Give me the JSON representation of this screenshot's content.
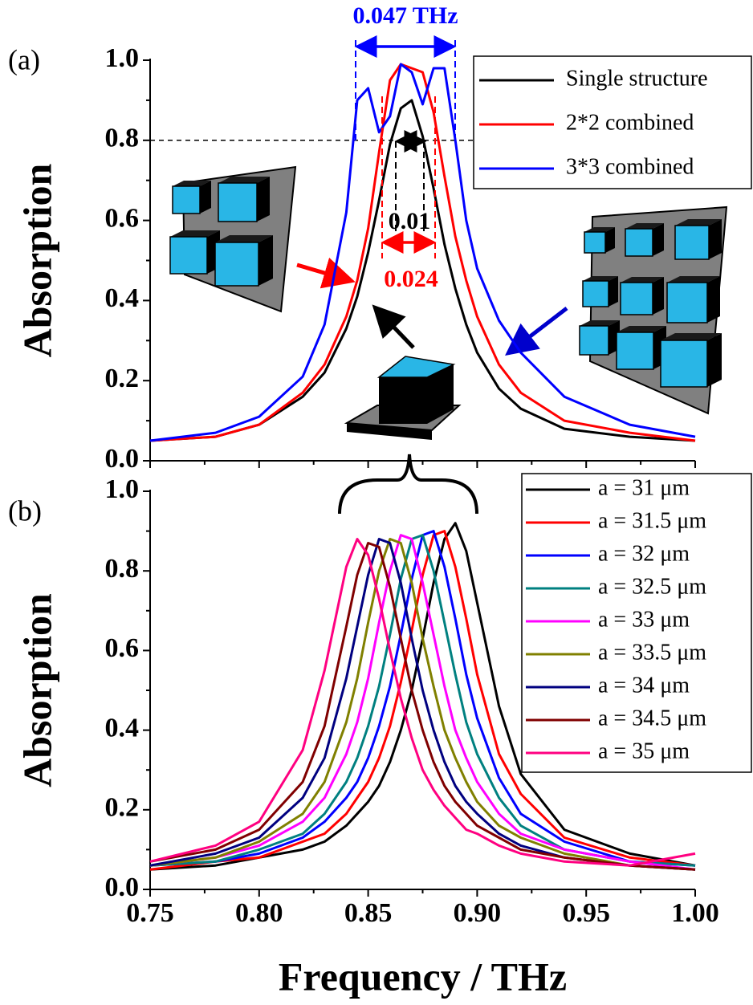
{
  "chart_data": [
    {
      "type": "line",
      "panel_label": "(a)",
      "ylabel": "Absorption",
      "xlim": [
        0.75,
        1.0
      ],
      "ylim": [
        0,
        1
      ],
      "xticks": [
        0.75,
        0.8,
        0.85,
        0.9,
        0.95,
        1.0
      ],
      "yticks": [
        {
          "value": 0,
          "label": "0.0"
        },
        0.2,
        0.4,
        0.6,
        0.8,
        {
          "value": 1,
          "label": "1.0"
        }
      ],
      "hline": 0.8,
      "legend": "upper right",
      "x": [
        0.75,
        0.78,
        0.8,
        0.82,
        0.83,
        0.84,
        0.845,
        0.85,
        0.855,
        0.86,
        0.865,
        0.87,
        0.875,
        0.88,
        0.885,
        0.89,
        0.895,
        0.9,
        0.91,
        0.92,
        0.94,
        0.97,
        1.0
      ],
      "series": [
        {
          "name": "Single structure",
          "color": "#000000",
          "values": [
            0.05,
            0.06,
            0.09,
            0.16,
            0.22,
            0.33,
            0.41,
            0.52,
            0.65,
            0.79,
            0.88,
            0.9,
            0.81,
            0.68,
            0.54,
            0.43,
            0.34,
            0.27,
            0.18,
            0.13,
            0.08,
            0.06,
            0.05
          ]
        },
        {
          "name": "2*2  combined",
          "color": "#ff0000",
          "values": [
            0.05,
            0.06,
            0.09,
            0.17,
            0.24,
            0.36,
            0.45,
            0.58,
            0.77,
            0.95,
            0.99,
            0.98,
            0.97,
            0.87,
            0.71,
            0.56,
            0.45,
            0.36,
            0.24,
            0.17,
            0.1,
            0.07,
            0.05
          ]
        },
        {
          "name": "3*3  combined",
          "color": "#0000ff",
          "values": [
            0.05,
            0.07,
            0.11,
            0.21,
            0.34,
            0.62,
            0.9,
            0.93,
            0.82,
            0.86,
            0.99,
            0.97,
            0.89,
            0.98,
            0.98,
            0.8,
            0.6,
            0.48,
            0.35,
            0.27,
            0.16,
            0.09,
            0.06
          ]
        }
      ],
      "annotations": [
        {
          "text": "0.047 THz",
          "color": "#0000ff"
        },
        {
          "text": "0.01",
          "color": "#000000"
        },
        {
          "text": "0.024",
          "color": "#ff0000"
        }
      ]
    },
    {
      "type": "line",
      "panel_label": "(b)",
      "ylabel": "Absorption",
      "xlabel": "Frequency / THz",
      "xlim": [
        0.75,
        1.0
      ],
      "ylim": [
        0,
        1
      ],
      "xticks": [
        0.75,
        {
          "value": 0.8,
          "label": "0.80"
        },
        0.85,
        {
          "value": 0.9,
          "label": "0.90"
        },
        0.95,
        {
          "value": 1,
          "label": "1.00"
        }
      ],
      "yticks": [
        {
          "value": 0,
          "label": "0.0"
        },
        0.2,
        0.4,
        0.6,
        0.8,
        {
          "value": 1,
          "label": "1.0"
        }
      ],
      "legend": "upper right",
      "x": [
        0.75,
        0.78,
        0.8,
        0.82,
        0.83,
        0.84,
        0.845,
        0.85,
        0.855,
        0.86,
        0.865,
        0.87,
        0.875,
        0.88,
        0.885,
        0.89,
        0.895,
        0.9,
        0.91,
        0.92,
        0.94,
        0.97,
        1.0
      ],
      "series": [
        {
          "name": "a = 31 μm",
          "color": "#000000",
          "values": [
            0.05,
            0.06,
            0.08,
            0.1,
            0.12,
            0.16,
            0.19,
            0.22,
            0.26,
            0.32,
            0.4,
            0.5,
            0.63,
            0.77,
            0.88,
            0.92,
            0.85,
            0.72,
            0.46,
            0.29,
            0.15,
            0.09,
            0.06
          ]
        },
        {
          "name": "a = 31.5 μm",
          "color": "#ff0000",
          "values": [
            0.05,
            0.07,
            0.08,
            0.12,
            0.14,
            0.19,
            0.23,
            0.27,
            0.33,
            0.41,
            0.52,
            0.65,
            0.79,
            0.89,
            0.9,
            0.81,
            0.68,
            0.54,
            0.34,
            0.24,
            0.13,
            0.08,
            0.06
          ]
        },
        {
          "name": "a = 32 μm",
          "color": "#0000ff",
          "values": [
            0.06,
            0.07,
            0.09,
            0.13,
            0.17,
            0.23,
            0.27,
            0.33,
            0.41,
            0.51,
            0.64,
            0.78,
            0.89,
            0.9,
            0.81,
            0.68,
            0.54,
            0.43,
            0.28,
            0.19,
            0.12,
            0.07,
            0.06
          ]
        },
        {
          "name": "a = 32.5 μm",
          "color": "#008080",
          "values": [
            0.06,
            0.07,
            0.1,
            0.14,
            0.19,
            0.27,
            0.33,
            0.41,
            0.51,
            0.64,
            0.78,
            0.88,
            0.89,
            0.8,
            0.67,
            0.54,
            0.42,
            0.34,
            0.23,
            0.16,
            0.1,
            0.07,
            0.06
          ]
        },
        {
          "name": "a = 33 μm",
          "color": "#ff00ff",
          "values": [
            0.06,
            0.08,
            0.11,
            0.17,
            0.23,
            0.34,
            0.42,
            0.53,
            0.67,
            0.8,
            0.89,
            0.88,
            0.77,
            0.64,
            0.51,
            0.4,
            0.33,
            0.27,
            0.19,
            0.14,
            0.1,
            0.07,
            0.05
          ]
        },
        {
          "name": "a = 33.5 μm",
          "color": "#808000",
          "values": [
            0.06,
            0.08,
            0.12,
            0.19,
            0.27,
            0.42,
            0.53,
            0.67,
            0.8,
            0.88,
            0.87,
            0.77,
            0.63,
            0.51,
            0.4,
            0.33,
            0.27,
            0.22,
            0.16,
            0.13,
            0.09,
            0.06,
            0.05
          ]
        },
        {
          "name": "a = 34 μm",
          "color": "#000080",
          "values": [
            0.06,
            0.09,
            0.13,
            0.23,
            0.33,
            0.53,
            0.66,
            0.79,
            0.88,
            0.87,
            0.77,
            0.63,
            0.5,
            0.4,
            0.32,
            0.26,
            0.22,
            0.19,
            0.14,
            0.11,
            0.08,
            0.06,
            0.05
          ]
        },
        {
          "name": "a = 34.5 μm",
          "color": "#800000",
          "values": [
            0.07,
            0.1,
            0.15,
            0.27,
            0.41,
            0.66,
            0.79,
            0.87,
            0.86,
            0.76,
            0.63,
            0.5,
            0.4,
            0.32,
            0.26,
            0.22,
            0.19,
            0.16,
            0.13,
            0.1,
            0.08,
            0.06,
            0.05
          ]
        },
        {
          "name": "a = 35 μm",
          "color": "#ff0080",
          "values": [
            0.07,
            0.11,
            0.17,
            0.35,
            0.55,
            0.81,
            0.88,
            0.84,
            0.73,
            0.6,
            0.48,
            0.38,
            0.3,
            0.25,
            0.21,
            0.18,
            0.15,
            0.14,
            0.11,
            0.09,
            0.07,
            0.06,
            0.09
          ]
        }
      ]
    }
  ]
}
